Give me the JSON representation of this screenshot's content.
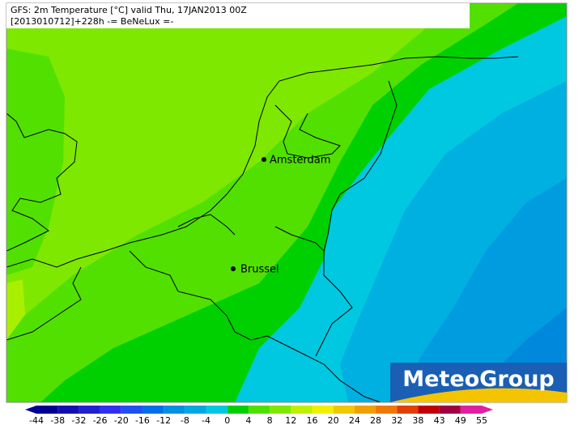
{
  "header": {
    "line1": "GFS: 2m Temperature [°C] valid Thu, 17JAN2013 00Z",
    "line2": "[2013010712]+228h -= BeNeLux =-"
  },
  "cities": [
    {
      "name": "Amsterdam"
    },
    {
      "name": "Brussel"
    }
  ],
  "logo": "MeteoGroup",
  "colorbar": {
    "ticks": [
      -44,
      -38,
      -32,
      -26,
      -20,
      -16,
      -12,
      -8,
      -4,
      0,
      4,
      8,
      12,
      16,
      20,
      24,
      28,
      32,
      38,
      43,
      49,
      55
    ],
    "colors": [
      "#000090",
      "#1010b0",
      "#2020d0",
      "#3030f0",
      "#2050f0",
      "#0070e8",
      "#0090e0",
      "#00a8e0",
      "#00c8e0",
      "#00d000",
      "#50e000",
      "#80e800",
      "#c0f000",
      "#f0f000",
      "#f0c800",
      "#f0a000",
      "#f07800",
      "#e04000",
      "#c00000",
      "#a00040",
      "#e020a0"
    ]
  }
}
